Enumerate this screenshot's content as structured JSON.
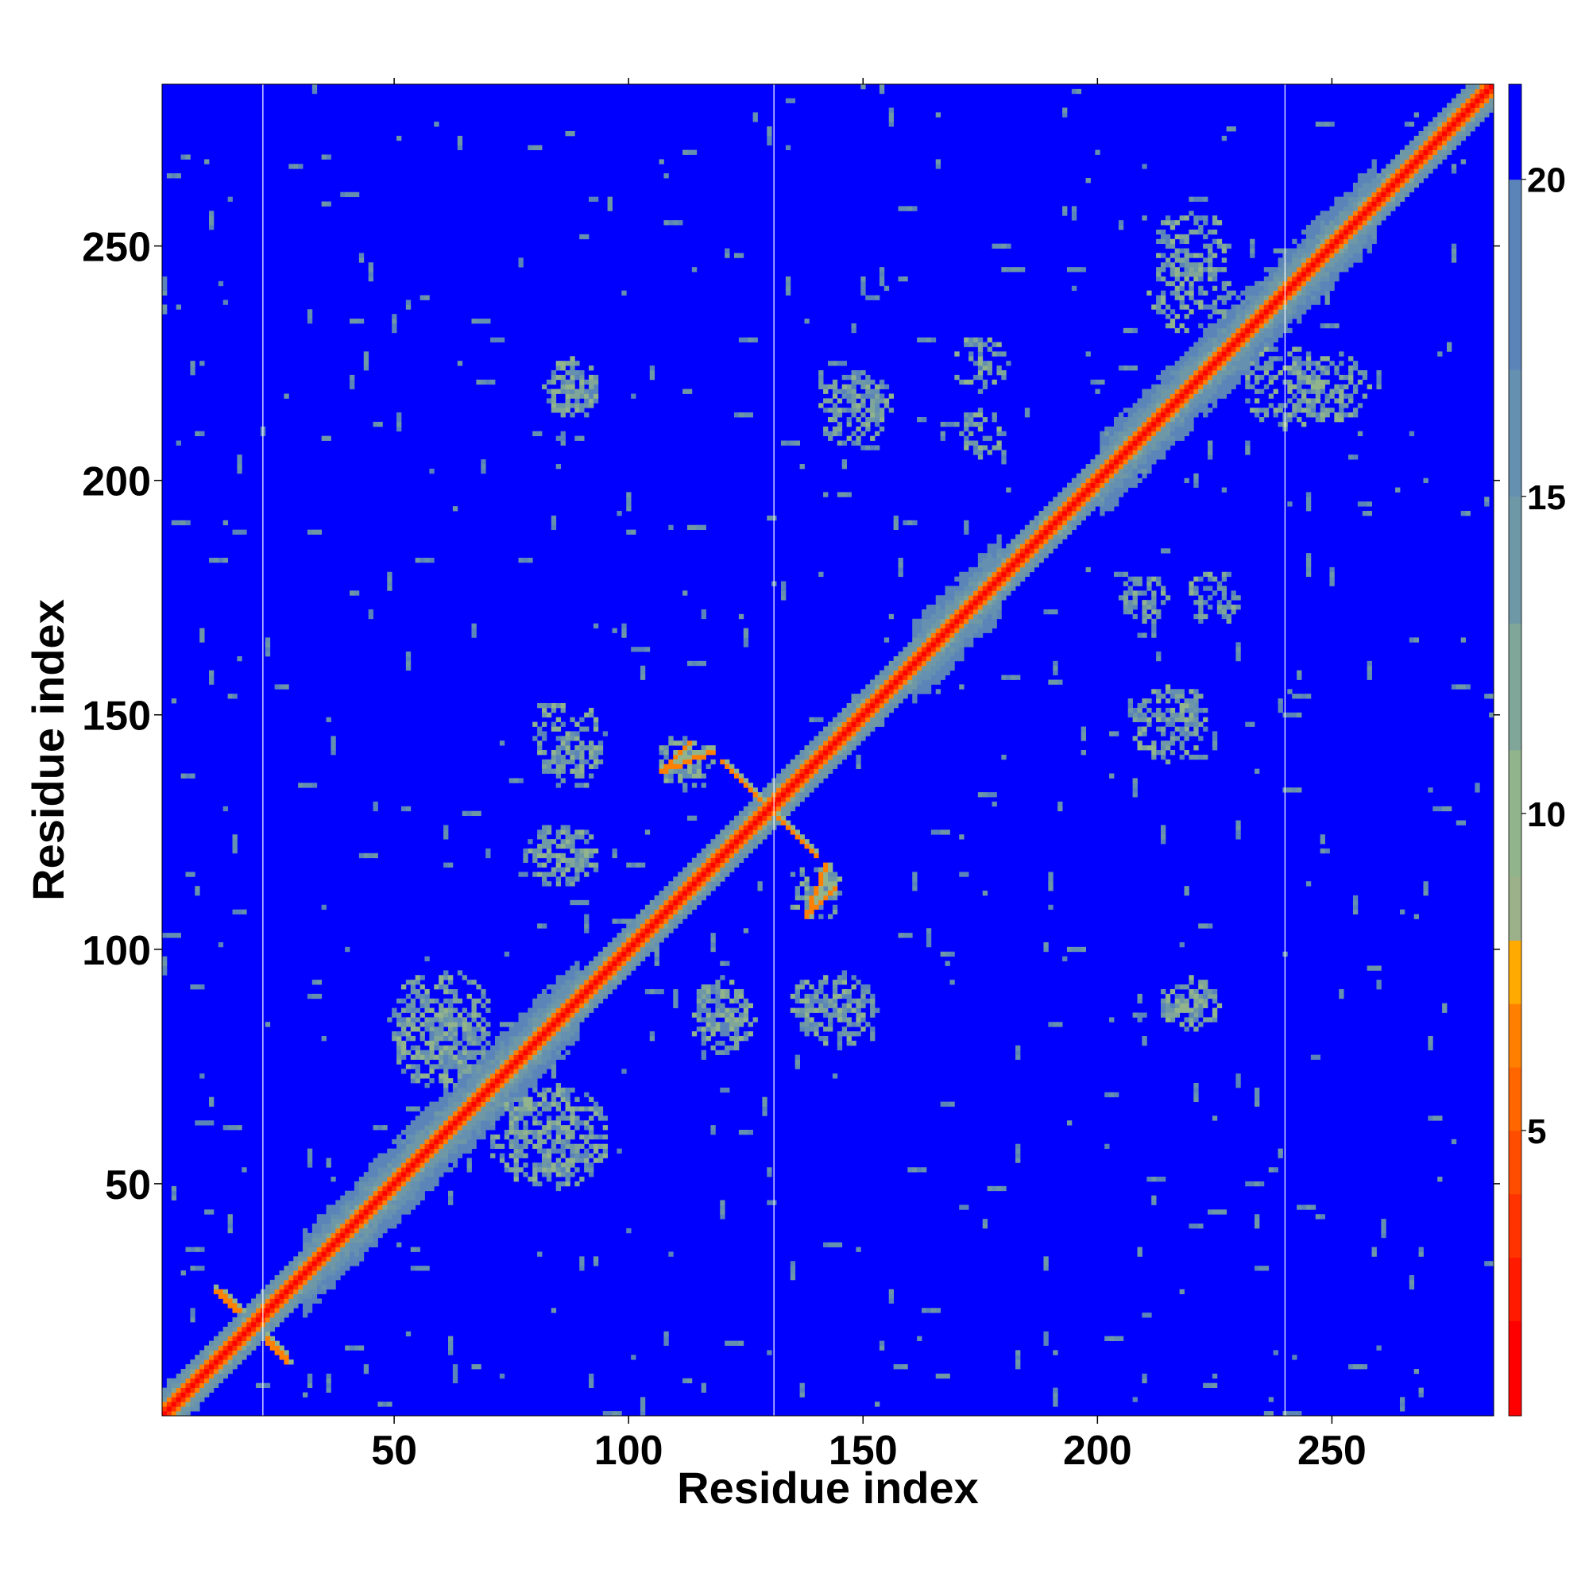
{
  "chart_data": {
    "type": "heatmap",
    "title": "",
    "xlabel": "Residue index",
    "ylabel": "Residue index",
    "n_residues": 284,
    "xlim": [
      1,
      284
    ],
    "ylim": [
      1,
      284
    ],
    "x_ticks": [
      "50",
      "100",
      "150",
      "200",
      "250"
    ],
    "y_ticks": [
      "50",
      "100",
      "150",
      "200",
      "250"
    ],
    "tick_values": [
      50,
      100,
      150,
      200,
      250
    ],
    "domain_boundaries": [
      22,
      131,
      240
    ],
    "colorbar": {
      "range": [
        0.5,
        21.5
      ],
      "ticks": [
        "5",
        "10",
        "15",
        "20"
      ],
      "tick_values": [
        5,
        10,
        15,
        20
      ],
      "stops": [
        {
          "max": 2,
          "color": "#ff0000"
        },
        {
          "max": 3,
          "color": "#ff1a00"
        },
        {
          "max": 4,
          "color": "#ff3300"
        },
        {
          "max": 5,
          "color": "#ff4d00"
        },
        {
          "max": 6,
          "color": "#ff6600"
        },
        {
          "max": 7,
          "color": "#ff8000"
        },
        {
          "max": 8,
          "color": "#ffaa00"
        },
        {
          "max": 9,
          "color": "#9cb08a"
        },
        {
          "max": 11,
          "color": "#92b48c"
        },
        {
          "max": 13,
          "color": "#7fa699"
        },
        {
          "max": 15,
          "color": "#6f98a6"
        },
        {
          "max": 17,
          "color": "#6590b0"
        },
        {
          "max": 20,
          "color": "#5b85b8"
        },
        {
          "max": 99,
          "color": "#0000ff"
        }
      ]
    },
    "background_color": "#0000ff",
    "diagonal_color": "#ff0000",
    "contact_clusters": [
      {
        "x": 85,
        "y": 120,
        "r": 7
      },
      {
        "x": 120,
        "y": 85,
        "r": 7
      },
      {
        "x": 87,
        "y": 145,
        "r": 8
      },
      {
        "x": 145,
        "y": 87,
        "r": 8
      },
      {
        "x": 112,
        "y": 140,
        "r": 6
      },
      {
        "x": 140,
        "y": 112,
        "r": 6
      },
      {
        "x": 120,
        "y": 88,
        "r": 6
      },
      {
        "x": 88,
        "y": 120,
        "r": 6
      },
      {
        "x": 60,
        "y": 85,
        "r": 11
      },
      {
        "x": 85,
        "y": 60,
        "r": 11
      },
      {
        "x": 80,
        "y": 60,
        "r": 10
      },
      {
        "x": 60,
        "y": 80,
        "r": 10
      },
      {
        "x": 88,
        "y": 220,
        "r": 6
      },
      {
        "x": 220,
        "y": 88,
        "r": 6
      },
      {
        "x": 148,
        "y": 215,
        "r": 8
      },
      {
        "x": 215,
        "y": 148,
        "r": 8
      },
      {
        "x": 218,
        "y": 150,
        "r": 6
      },
      {
        "x": 150,
        "y": 218,
        "r": 6
      },
      {
        "x": 220,
        "y": 240,
        "r": 9
      },
      {
        "x": 240,
        "y": 220,
        "r": 9
      },
      {
        "x": 250,
        "y": 220,
        "r": 8
      },
      {
        "x": 220,
        "y": 250,
        "r": 8
      },
      {
        "x": 175,
        "y": 225,
        "r": 6
      },
      {
        "x": 225,
        "y": 175,
        "r": 6
      },
      {
        "x": 218,
        "y": 88,
        "r": 5
      },
      {
        "x": 88,
        "y": 218,
        "r": 5
      },
      {
        "x": 140,
        "y": 88,
        "r": 6
      },
      {
        "x": 88,
        "y": 140,
        "r": 6
      },
      {
        "x": 210,
        "y": 175,
        "r": 5
      },
      {
        "x": 175,
        "y": 210,
        "r": 5
      }
    ],
    "antiparallel_strands": [
      {
        "x0": 107,
        "y0": 138,
        "x1": 113,
        "y1": 144
      },
      {
        "x0": 120,
        "y0": 140,
        "x1": 138,
        "y1": 122
      },
      {
        "x0": 138,
        "y0": 107,
        "x1": 142,
        "y1": 118
      },
      {
        "x0": 13,
        "y0": 27,
        "x1": 17,
        "y1": 23
      },
      {
        "x0": 23,
        "y0": 16,
        "x1": 27,
        "y1": 12
      }
    ]
  }
}
